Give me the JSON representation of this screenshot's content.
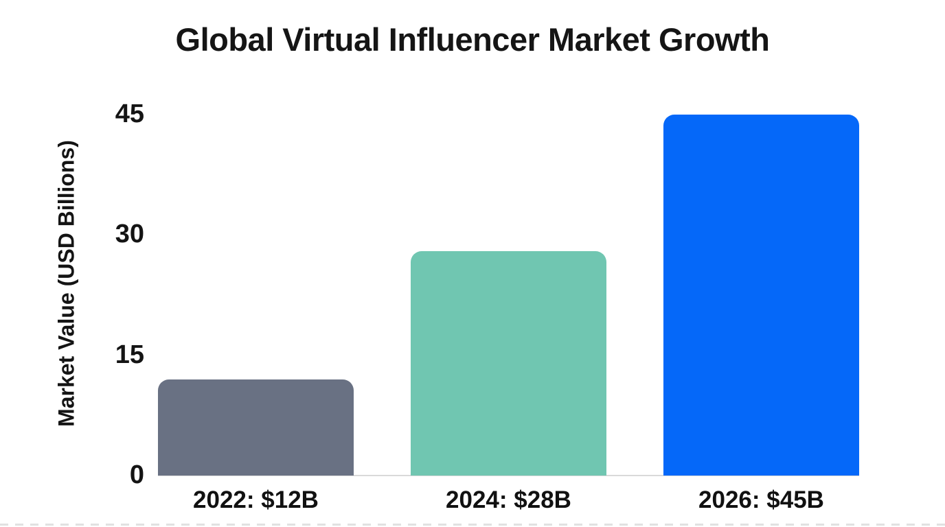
{
  "chart_data": {
    "type": "bar",
    "title": "Global Virtual Influencer Market Growth",
    "xlabel": "",
    "ylabel": "Market Value (USD Billions)",
    "categories": [
      "2022: $12B",
      "2024: $28B",
      "2026: $45B"
    ],
    "values": [
      12,
      28,
      45
    ],
    "units": "USD Billions",
    "yticks": [
      0,
      15,
      30,
      45
    ],
    "ylim": [
      0,
      45
    ],
    "grid": false,
    "legend": false,
    "bar_colors": [
      "#697183",
      "#70c6b1",
      "#0568f9"
    ],
    "axis_line_color": "#d9d9d9",
    "text_color": "#141414",
    "background_color": "#ffffff"
  }
}
